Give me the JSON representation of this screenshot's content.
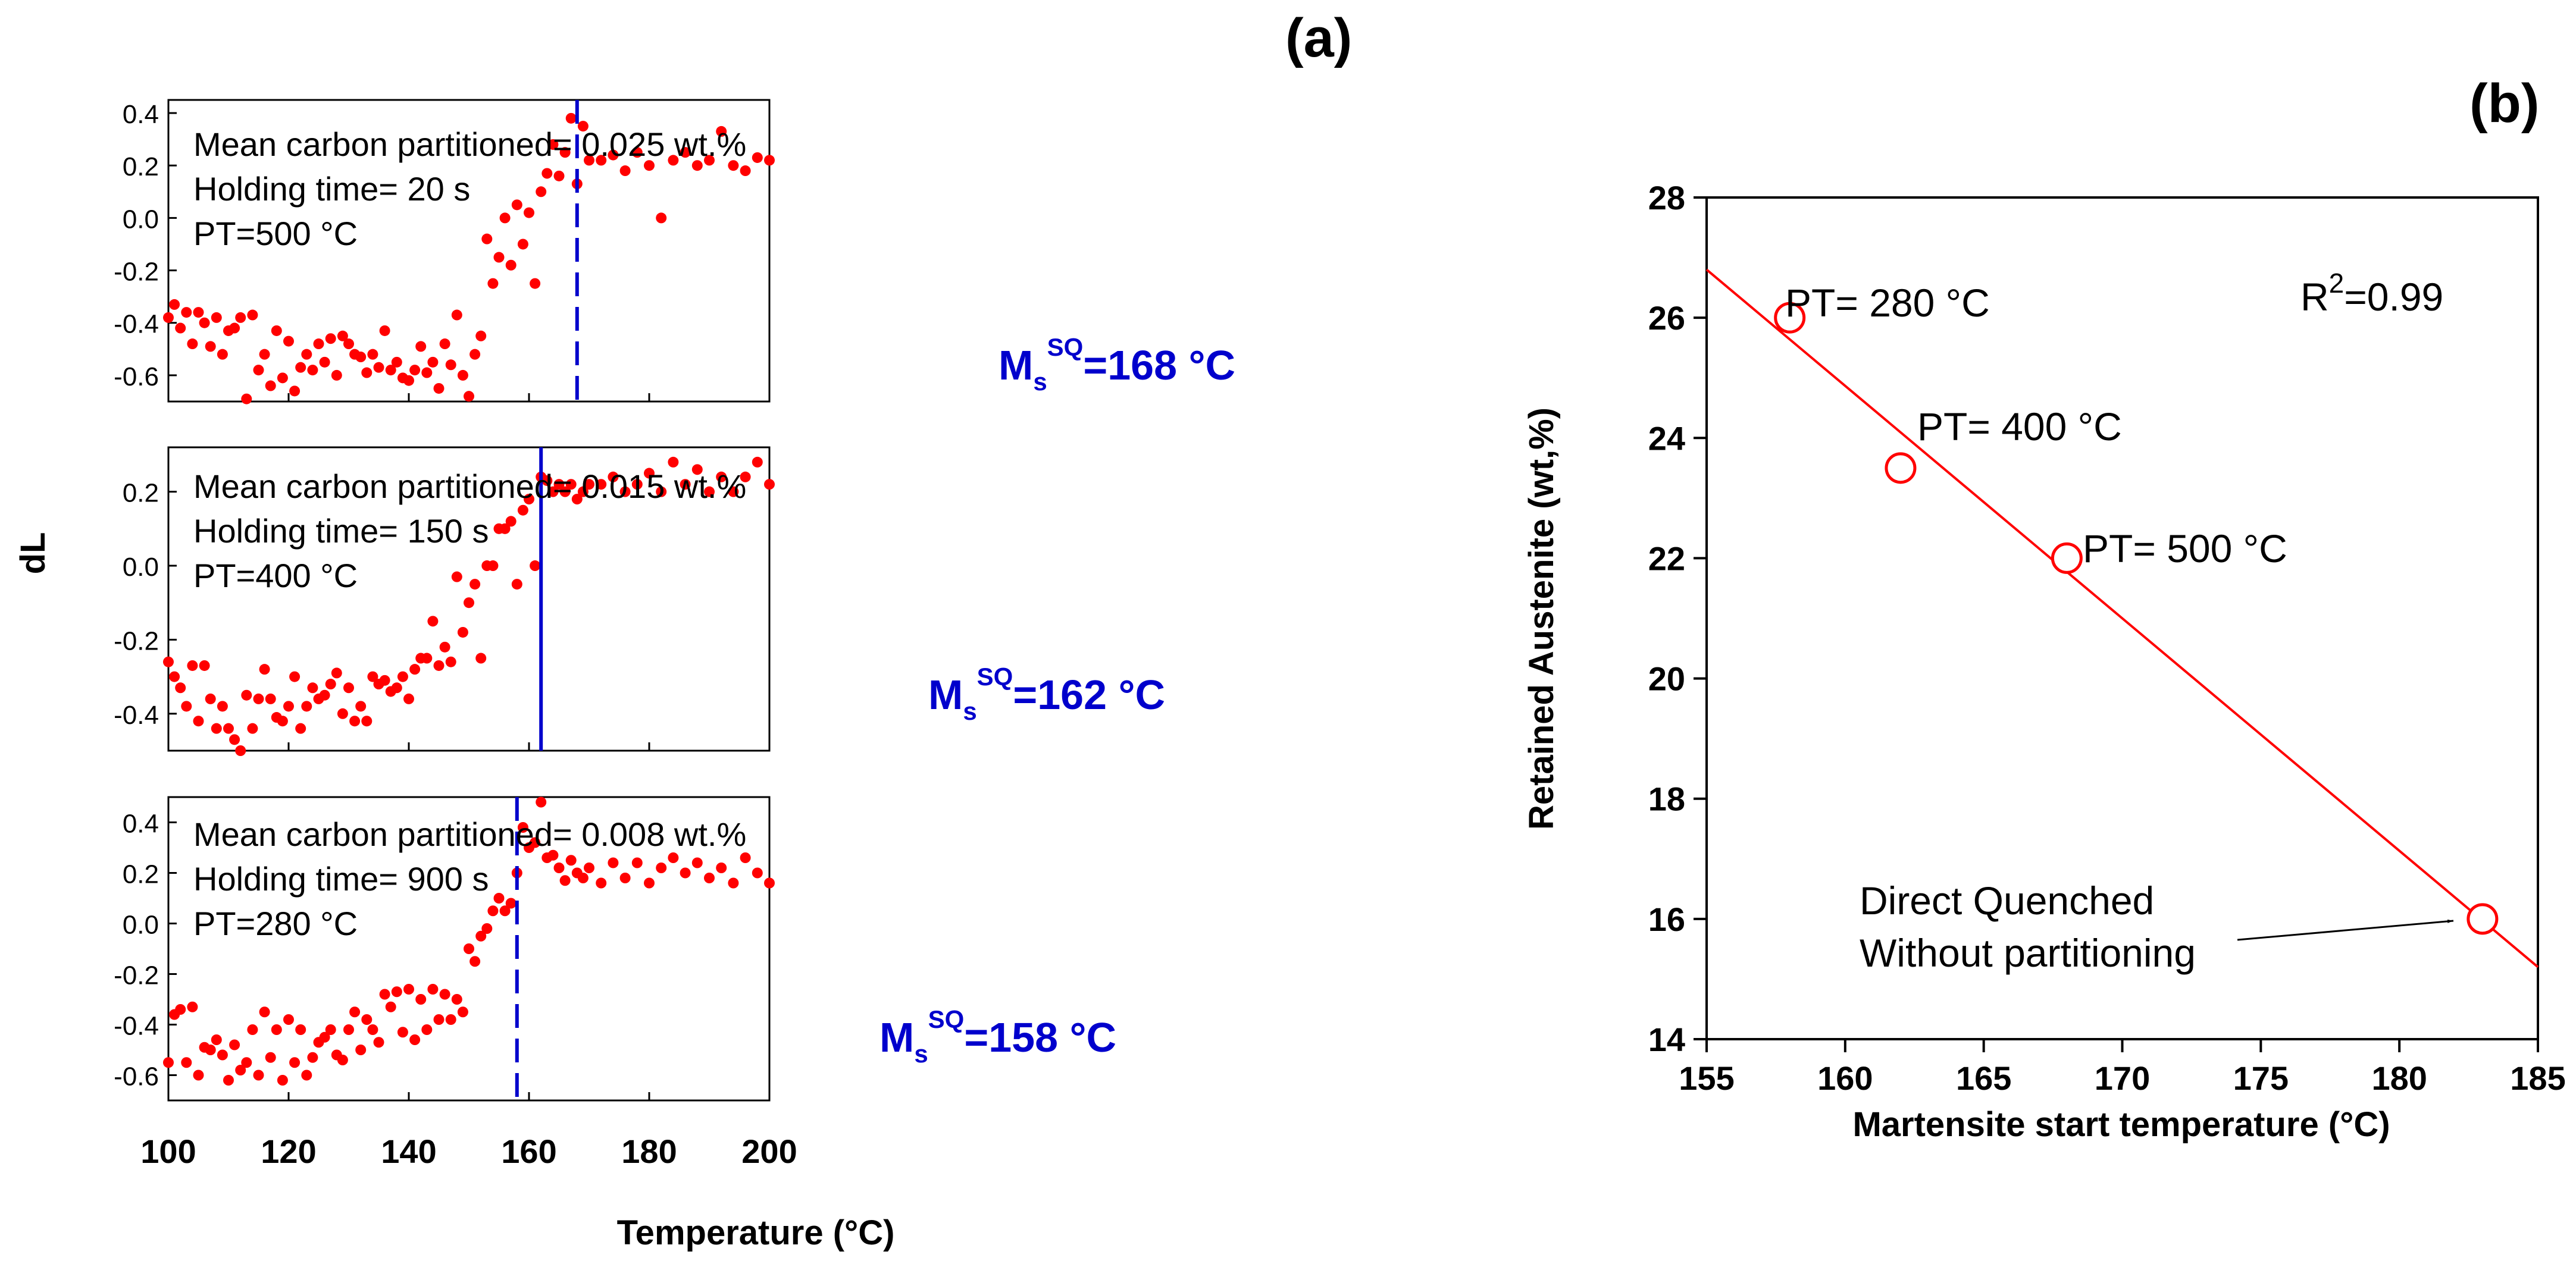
{
  "panel_labels": {
    "a": "(a)",
    "b": "(b)"
  },
  "chart_data": [
    {
      "type": "scatter",
      "panel": "(a)",
      "xlabel": "Temperature (°C)",
      "ylabel": "dL",
      "xlim": [
        100,
        200
      ],
      "x_ticks": [
        100,
        120,
        140,
        160,
        180,
        200
      ],
      "subplots": [
        {
          "ylim": [
            -0.7,
            0.45
          ],
          "y_ticks": [
            0.4,
            0.2,
            0.0,
            -0.2,
            -0.4,
            -0.6
          ],
          "annotations": [
            "Mean carbon partitioned= 0.025 wt.%",
            "Holding time= 20 s",
            "PT=500 °C"
          ],
          "ms_line_x": 168,
          "ms_label": {
            "main": "M",
            "sub": "s",
            "sup": "SQ",
            "rest": "=168 °C"
          },
          "series": {
            "name": "PT=500 °C",
            "color": "#ff0000",
            "x": [
              100,
              101,
              102,
              103,
              104,
              105,
              106,
              107,
              108,
              109,
              110,
              111,
              112,
              113,
              114,
              115,
              116,
              117,
              118,
              119,
              120,
              121,
              122,
              123,
              124,
              125,
              126,
              127,
              128,
              129,
              130,
              131,
              132,
              133,
              134,
              135,
              136,
              137,
              138,
              139,
              140,
              141,
              142,
              143,
              144,
              145,
              146,
              147,
              148,
              149,
              150,
              151,
              152,
              153,
              154,
              155,
              156,
              157,
              158,
              159,
              160,
              161,
              162,
              163,
              164,
              165,
              166,
              167,
              168,
              169,
              170,
              172,
              174,
              176,
              178,
              180,
              182,
              184,
              186,
              188,
              190,
              192,
              194,
              196,
              198,
              200
            ],
            "y": [
              -0.38,
              -0.33,
              -0.42,
              -0.36,
              -0.48,
              -0.36,
              -0.4,
              -0.49,
              -0.38,
              -0.52,
              -0.43,
              -0.42,
              -0.38,
              -0.69,
              -0.37,
              -0.58,
              -0.52,
              -0.64,
              -0.43,
              -0.61,
              -0.47,
              -0.66,
              -0.57,
              -0.52,
              -0.58,
              -0.48,
              -0.55,
              -0.46,
              -0.6,
              -0.45,
              -0.48,
              -0.52,
              -0.53,
              -0.59,
              -0.52,
              -0.57,
              -0.43,
              -0.58,
              -0.55,
              -0.61,
              -0.62,
              -0.58,
              -0.49,
              -0.59,
              -0.55,
              -0.65,
              -0.48,
              -0.56,
              -0.37,
              -0.6,
              -0.68,
              -0.52,
              -0.45,
              -0.08,
              -0.25,
              -0.15,
              0.0,
              -0.18,
              0.05,
              -0.1,
              0.02,
              -0.25,
              0.1,
              0.17,
              0.28,
              0.16,
              0.25,
              0.38,
              0.13,
              0.35,
              0.22,
              0.22,
              0.24,
              0.18,
              0.25,
              0.2,
              0.0,
              0.22,
              0.25,
              0.2,
              0.22,
              0.33,
              0.2,
              0.18,
              0.23,
              0.22
            ]
          }
        },
        {
          "ylim": [
            -0.5,
            0.32
          ],
          "y_ticks": [
            0.2,
            0.0,
            -0.2,
            -0.4
          ],
          "annotations": [
            "Mean carbon partitioned= 0.015 wt.%",
            "Holding time= 150 s",
            "PT=400 °C"
          ],
          "ms_line_x": 162,
          "ms_label": {
            "main": "M",
            "sub": "s",
            "sup": "SQ",
            "rest": "=162 °C"
          },
          "series": {
            "name": "PT=400 °C",
            "color": "#ff0000",
            "x": [
              100,
              101,
              102,
              103,
              104,
              105,
              106,
              107,
              108,
              109,
              110,
              111,
              112,
              113,
              114,
              115,
              116,
              117,
              118,
              119,
              120,
              121,
              122,
              123,
              124,
              125,
              126,
              127,
              128,
              129,
              130,
              131,
              132,
              133,
              134,
              135,
              136,
              137,
              138,
              139,
              140,
              141,
              142,
              143,
              144,
              145,
              146,
              147,
              148,
              149,
              150,
              151,
              152,
              153,
              154,
              155,
              156,
              157,
              158,
              159,
              160,
              161,
              162,
              163,
              164,
              165,
              166,
              167,
              168,
              169,
              170,
              172,
              174,
              176,
              178,
              180,
              182,
              184,
              186,
              188,
              190,
              192,
              194,
              196,
              198,
              200
            ],
            "y": [
              -0.26,
              -0.3,
              -0.33,
              -0.38,
              -0.27,
              -0.42,
              -0.27,
              -0.36,
              -0.44,
              -0.38,
              -0.44,
              -0.47,
              -0.5,
              -0.35,
              -0.44,
              -0.36,
              -0.28,
              -0.36,
              -0.41,
              -0.42,
              -0.38,
              -0.3,
              -0.44,
              -0.38,
              -0.33,
              -0.36,
              -0.35,
              -0.32,
              -0.29,
              -0.4,
              -0.33,
              -0.42,
              -0.38,
              -0.42,
              -0.3,
              -0.32,
              -0.31,
              -0.34,
              -0.33,
              -0.3,
              -0.36,
              -0.28,
              -0.25,
              -0.25,
              -0.15,
              -0.27,
              -0.22,
              -0.26,
              -0.03,
              -0.18,
              -0.1,
              -0.05,
              -0.25,
              0.0,
              0.0,
              0.1,
              0.1,
              0.12,
              -0.05,
              0.15,
              0.18,
              0.0,
              0.24,
              0.23,
              0.2,
              0.22,
              0.2,
              0.22,
              0.18,
              0.2,
              0.22,
              0.22,
              0.24,
              0.2,
              0.22,
              0.25,
              0.2,
              0.28,
              0.22,
              0.26,
              0.2,
              0.24,
              0.2,
              0.24,
              0.28,
              0.22
            ]
          }
        },
        {
          "ylim": [
            -0.7,
            0.5
          ],
          "y_ticks": [
            0.4,
            0.2,
            0.0,
            -0.2,
            -0.4,
            -0.6
          ],
          "annotations": [
            "Mean carbon partitioned= 0.008 wt.%",
            "Holding time= 900 s",
            "PT=280 °C"
          ],
          "ms_line_x": 158,
          "ms_label": {
            "main": "M",
            "sub": "s",
            "sup": "SQ",
            "rest": "=158 °C"
          },
          "series": {
            "name": "PT=280 °C",
            "color": "#ff0000",
            "x": [
              100,
              101,
              102,
              103,
              104,
              105,
              106,
              107,
              108,
              109,
              110,
              111,
              112,
              113,
              114,
              115,
              116,
              117,
              118,
              119,
              120,
              121,
              122,
              123,
              124,
              125,
              126,
              127,
              128,
              129,
              130,
              131,
              132,
              133,
              134,
              135,
              136,
              137,
              138,
              139,
              140,
              141,
              142,
              143,
              144,
              145,
              146,
              147,
              148,
              149,
              150,
              151,
              152,
              153,
              154,
              155,
              156,
              157,
              158,
              159,
              160,
              161,
              162,
              163,
              164,
              165,
              166,
              167,
              168,
              169,
              170,
              172,
              174,
              176,
              178,
              180,
              182,
              184,
              186,
              188,
              190,
              192,
              194,
              196,
              198,
              200
            ],
            "y": [
              -0.55,
              -0.36,
              -0.34,
              -0.55,
              -0.33,
              -0.6,
              -0.49,
              -0.5,
              -0.46,
              -0.52,
              -0.62,
              -0.48,
              -0.58,
              -0.55,
              -0.42,
              -0.6,
              -0.35,
              -0.53,
              -0.42,
              -0.62,
              -0.38,
              -0.55,
              -0.42,
              -0.6,
              -0.53,
              -0.47,
              -0.45,
              -0.42,
              -0.52,
              -0.54,
              -0.42,
              -0.35,
              -0.5,
              -0.38,
              -0.42,
              -0.47,
              -0.28,
              -0.33,
              -0.27,
              -0.43,
              -0.26,
              -0.46,
              -0.3,
              -0.42,
              -0.26,
              -0.38,
              -0.28,
              -0.38,
              -0.3,
              -0.35,
              -0.1,
              -0.15,
              -0.05,
              -0.02,
              0.05,
              0.1,
              0.05,
              0.08,
              0.2,
              0.38,
              0.3,
              0.32,
              0.48,
              0.26,
              0.27,
              0.22,
              0.17,
              0.25,
              0.2,
              0.18,
              0.22,
              0.16,
              0.24,
              0.18,
              0.24,
              0.16,
              0.22,
              0.26,
              0.2,
              0.24,
              0.18,
              0.22,
              0.16,
              0.26,
              0.2,
              0.16
            ]
          }
        }
      ]
    },
    {
      "type": "scatter",
      "panel": "(b)",
      "xlabel": "Martensite start temperature (°C)",
      "ylabel": "Retained Austenite (wt,%)",
      "xlim": [
        155,
        185
      ],
      "ylim": [
        14,
        28
      ],
      "x_ticks": [
        155,
        160,
        165,
        170,
        175,
        180,
        185
      ],
      "y_ticks": [
        14,
        16,
        18,
        20,
        22,
        24,
        26,
        28
      ],
      "series": [
        {
          "name": "Retained austenite",
          "x": [
            158,
            162,
            168,
            183
          ],
          "y": [
            26,
            23.5,
            22,
            16
          ],
          "color": "#ff0000",
          "marker": "open-circle"
        }
      ],
      "fit_line": {
        "x": [
          155,
          185
        ],
        "y": [
          26.8,
          15.2
        ],
        "color": "#ff0000"
      },
      "point_labels": [
        "PT= 280 °C",
        "PT= 400 °C",
        "PT= 500 °C"
      ],
      "r_squared": {
        "main": "R",
        "sup": "2",
        "rest": "=0.99"
      },
      "callout": [
        "Direct Quenched",
        "Without partitioning"
      ]
    }
  ]
}
